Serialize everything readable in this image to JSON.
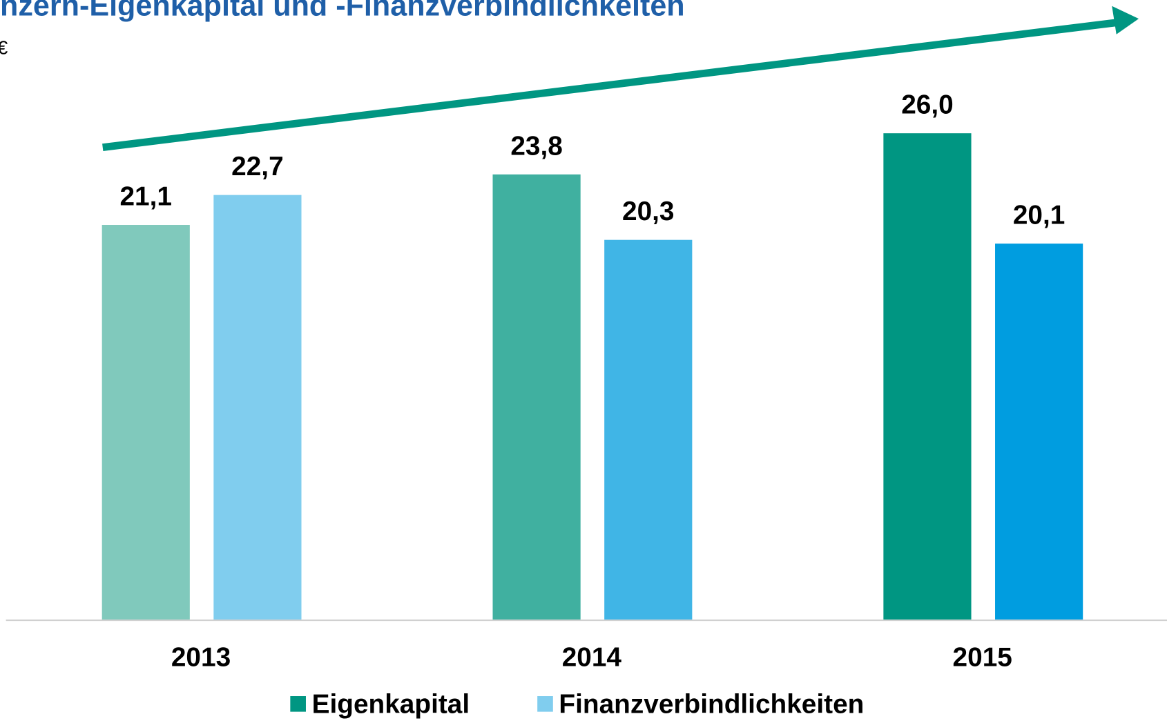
{
  "chart_data": {
    "type": "bar",
    "title": "nzern-Eigenkapital und -Finanzverbindlichkeiten",
    "subtitle": "€",
    "categories": [
      "2013",
      "2014",
      "2015"
    ],
    "series": [
      {
        "name": "Eigenkapital",
        "color": "#009682",
        "colors": [
          "#80c9bc",
          "#40b0a0",
          "#009682"
        ],
        "values": [
          21.1,
          23.8,
          26.0
        ],
        "value_labels": [
          "21,1",
          "23,8",
          "26,0"
        ]
      },
      {
        "name": "Finanzverbindlichkeiten",
        "color": "#80cdee",
        "colors": [
          "#80cdee",
          "#40b5e6",
          "#009de0"
        ],
        "values": [
          22.7,
          20.3,
          20.1
        ],
        "value_labels": [
          "22,7",
          "20,3",
          "20,1"
        ]
      }
    ],
    "ylim": [
      0,
      33
    ],
    "legend": "bottom"
  }
}
